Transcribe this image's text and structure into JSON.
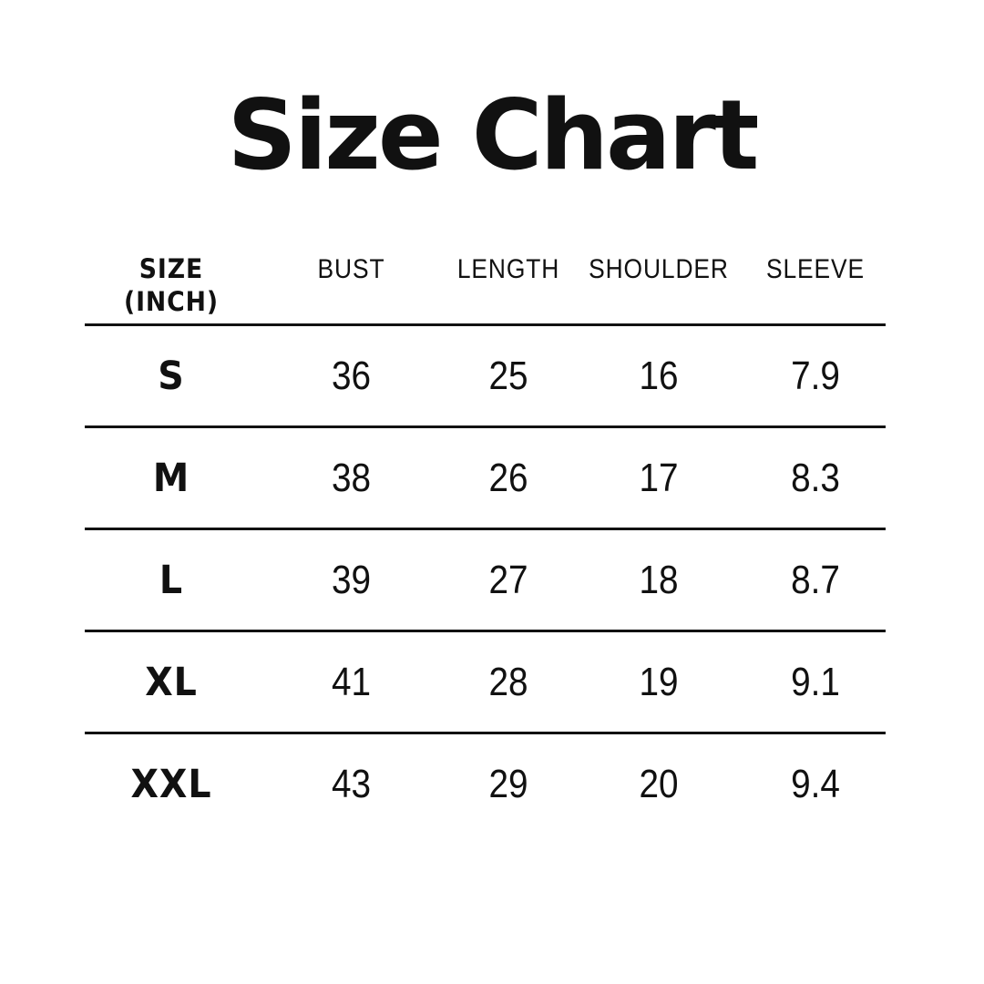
{
  "colors": {
    "background": "#ffffff",
    "text": "#111111",
    "rule_line": "#111111"
  },
  "title": "Size Chart",
  "table": {
    "unit_note": "(INCH)",
    "header": {
      "size_line1": "SIZE",
      "size_line2": "(INCH)",
      "bust": "BUST",
      "length": "LENGTH",
      "shoulder": "SHOULDER",
      "sleeve": "SLEEVE"
    },
    "rows": [
      {
        "size": "S",
        "bust": "36",
        "length": "25",
        "shoulder": "16",
        "sleeve": "7.9"
      },
      {
        "size": "M",
        "bust": "38",
        "length": "26",
        "shoulder": "17",
        "sleeve": "8.3"
      },
      {
        "size": "L",
        "bust": "39",
        "length": "27",
        "shoulder": "18",
        "sleeve": "8.7"
      },
      {
        "size": "XL",
        "bust": "41",
        "length": "28",
        "shoulder": "19",
        "sleeve": "9.1"
      },
      {
        "size": "XXL",
        "bust": "43",
        "length": "29",
        "shoulder": "20",
        "sleeve": "9.4"
      }
    ]
  },
  "chart_data": {
    "type": "table",
    "title": "Size Chart",
    "unit": "inch",
    "columns": [
      "SIZE (INCH)",
      "BUST",
      "LENGTH",
      "SHOULDER",
      "SLEEVE"
    ],
    "rows": [
      [
        "S",
        36,
        25,
        16,
        7.9
      ],
      [
        "M",
        38,
        26,
        17,
        8.3
      ],
      [
        "L",
        39,
        27,
        18,
        8.7
      ],
      [
        "XL",
        41,
        28,
        19,
        9.1
      ],
      [
        "XXL",
        43,
        29,
        20,
        9.4
      ]
    ]
  }
}
